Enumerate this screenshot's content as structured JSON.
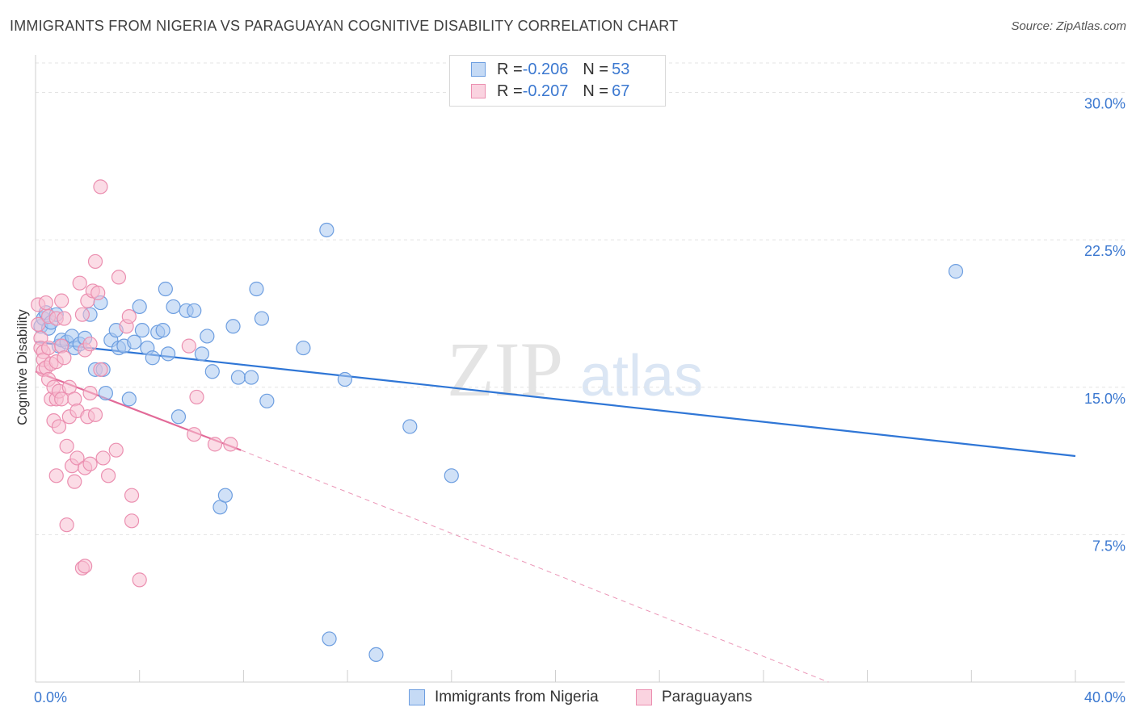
{
  "title": "IMMIGRANTS FROM NIGERIA VS PARAGUAYAN COGNITIVE DISABILITY CORRELATION CHART",
  "source": "Source: ZipAtlas.com",
  "watermark": {
    "zip": "ZIP",
    "atlas": "atlas"
  },
  "legend_top": [
    {
      "r_label": "R = ",
      "r_value": "-0.206",
      "n_label": "N = ",
      "n_value": "53"
    },
    {
      "r_label": "R = ",
      "r_value": "-0.207",
      "n_label": "N = ",
      "n_value": "67"
    }
  ],
  "legend_bottom": [
    {
      "label": "Immigrants from Nigeria"
    },
    {
      "label": "Paraguayans"
    }
  ],
  "colors": {
    "blue_fill": "#a9c8f0",
    "blue_stroke": "#6d9ee0",
    "blue_line": "#2f76d6",
    "pink_fill": "#f7bfd2",
    "pink_stroke": "#eb8fb0",
    "pink_line": "#e26a98",
    "grid": "#e3e3e3",
    "axis_text": "#3b78d0"
  },
  "chart_data": {
    "type": "scatter",
    "title": "IMMIGRANTS FROM NIGERIA VS PARAGUAYAN COGNITIVE DISABILITY CORRELATION CHART",
    "xlabel": "",
    "ylabel": "Cognitive Disability",
    "xlim": [
      0,
      40
    ],
    "ylim": [
      0,
      31.5
    ],
    "x_tick_labels": [
      {
        "value": 0,
        "label": "0.0%"
      },
      {
        "value": 40,
        "label": "40.0%"
      }
    ],
    "y_tick_labels": [
      {
        "value": 7.5,
        "label": "7.5%"
      },
      {
        "value": 15,
        "label": "15.0%"
      },
      {
        "value": 22.5,
        "label": "22.5%"
      },
      {
        "value": 30,
        "label": "30.0%"
      }
    ],
    "series": [
      {
        "name": "Immigrants from Nigeria",
        "color": "blue",
        "points": [
          [
            0.2,
            18.1
          ],
          [
            0.3,
            18.5
          ],
          [
            0.4,
            18.8
          ],
          [
            0.5,
            18.0
          ],
          [
            0.6,
            18.3
          ],
          [
            0.8,
            18.7
          ],
          [
            0.9,
            17.1
          ],
          [
            1.0,
            17.4
          ],
          [
            1.2,
            17.3
          ],
          [
            1.4,
            17.6
          ],
          [
            1.5,
            17.0
          ],
          [
            1.7,
            17.2
          ],
          [
            1.9,
            17.5
          ],
          [
            2.1,
            18.7
          ],
          [
            2.3,
            15.9
          ],
          [
            2.5,
            19.3
          ],
          [
            2.6,
            15.9
          ],
          [
            2.7,
            14.7
          ],
          [
            2.9,
            17.4
          ],
          [
            3.1,
            17.9
          ],
          [
            3.2,
            17.0
          ],
          [
            3.4,
            17.1
          ],
          [
            3.6,
            14.4
          ],
          [
            3.8,
            17.3
          ],
          [
            4.0,
            19.1
          ],
          [
            4.1,
            17.9
          ],
          [
            4.3,
            17.0
          ],
          [
            4.5,
            16.5
          ],
          [
            4.7,
            17.8
          ],
          [
            4.9,
            17.9
          ],
          [
            5.0,
            20.0
          ],
          [
            5.1,
            16.7
          ],
          [
            5.3,
            19.1
          ],
          [
            5.5,
            13.5
          ],
          [
            5.8,
            18.9
          ],
          [
            6.1,
            18.9
          ],
          [
            6.4,
            16.7
          ],
          [
            6.6,
            17.6
          ],
          [
            6.8,
            15.8
          ],
          [
            7.1,
            8.9
          ],
          [
            7.3,
            9.5
          ],
          [
            7.6,
            18.1
          ],
          [
            7.8,
            15.5
          ],
          [
            8.3,
            15.5
          ],
          [
            8.5,
            20.0
          ],
          [
            8.7,
            18.5
          ],
          [
            8.9,
            14.3
          ],
          [
            10.3,
            17.0
          ],
          [
            11.2,
            23.0
          ],
          [
            11.9,
            15.4
          ],
          [
            11.3,
            2.2
          ],
          [
            13.1,
            1.4
          ],
          [
            14.4,
            13.0
          ],
          [
            16.0,
            10.5
          ],
          [
            35.4,
            20.9
          ]
        ],
        "trend": {
          "x": [
            0,
            40
          ],
          "y": [
            17.3,
            11.5
          ]
        }
      },
      {
        "name": "Paraguayans",
        "color": "pink",
        "points": [
          [
            0.1,
            19.2
          ],
          [
            0.1,
            18.2
          ],
          [
            0.2,
            17.5
          ],
          [
            0.2,
            17.0
          ],
          [
            0.3,
            16.8
          ],
          [
            0.3,
            15.9
          ],
          [
            0.3,
            16.4
          ],
          [
            0.4,
            19.3
          ],
          [
            0.4,
            16.0
          ],
          [
            0.5,
            18.6
          ],
          [
            0.5,
            17.0
          ],
          [
            0.5,
            15.4
          ],
          [
            0.6,
            16.2
          ],
          [
            0.6,
            14.4
          ],
          [
            0.7,
            15.0
          ],
          [
            0.7,
            13.3
          ],
          [
            0.8,
            18.5
          ],
          [
            0.8,
            16.3
          ],
          [
            0.8,
            14.4
          ],
          [
            0.8,
            10.5
          ],
          [
            0.9,
            13.0
          ],
          [
            0.9,
            14.8
          ],
          [
            1.0,
            19.4
          ],
          [
            1.0,
            17.1
          ],
          [
            1.0,
            14.4
          ],
          [
            1.1,
            18.5
          ],
          [
            1.1,
            16.5
          ],
          [
            1.2,
            12.0
          ],
          [
            1.2,
            8.0
          ],
          [
            1.3,
            15.0
          ],
          [
            1.3,
            13.5
          ],
          [
            1.4,
            11.0
          ],
          [
            1.5,
            14.4
          ],
          [
            1.5,
            10.2
          ],
          [
            1.6,
            13.8
          ],
          [
            1.6,
            11.4
          ],
          [
            1.7,
            20.3
          ],
          [
            1.8,
            18.7
          ],
          [
            1.8,
            5.8
          ],
          [
            1.9,
            16.9
          ],
          [
            1.9,
            10.9
          ],
          [
            1.9,
            5.9
          ],
          [
            2.0,
            19.4
          ],
          [
            2.0,
            13.5
          ],
          [
            2.1,
            17.2
          ],
          [
            2.1,
            11.1
          ],
          [
            2.1,
            14.7
          ],
          [
            2.2,
            19.9
          ],
          [
            2.3,
            13.6
          ],
          [
            2.3,
            21.4
          ],
          [
            2.4,
            19.8
          ],
          [
            2.5,
            25.2
          ],
          [
            2.5,
            15.9
          ],
          [
            2.6,
            11.4
          ],
          [
            2.8,
            10.5
          ],
          [
            3.1,
            11.8
          ],
          [
            3.2,
            20.6
          ],
          [
            3.5,
            18.1
          ],
          [
            3.6,
            18.6
          ],
          [
            3.7,
            8.2
          ],
          [
            3.7,
            9.5
          ],
          [
            4.0,
            5.2
          ],
          [
            5.9,
            17.1
          ],
          [
            6.1,
            12.6
          ],
          [
            6.2,
            14.5
          ],
          [
            6.9,
            12.1
          ],
          [
            7.5,
            12.1
          ]
        ],
        "trend": {
          "x": [
            0,
            7.9
          ],
          "y": [
            15.8,
            11.8
          ]
        },
        "trend_extension": {
          "x": [
            7.9,
            30.5
          ],
          "y": [
            11.8,
            0
          ]
        }
      }
    ]
  }
}
